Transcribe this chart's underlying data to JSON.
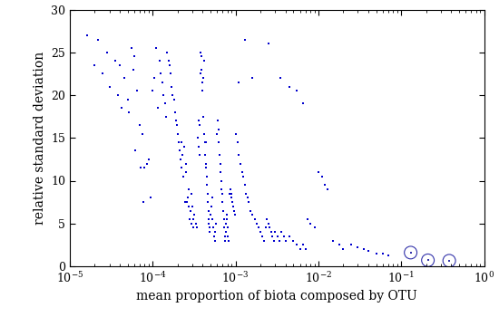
{
  "xlabel": "mean proportion of biota composed by OTU",
  "ylabel": "relative standard deviation",
  "xlim_log": [
    -5,
    0
  ],
  "ylim": [
    0,
    30
  ],
  "dot_color": "#0000CD",
  "circle_color": "#3333AA",
  "background_color": "#ffffff",
  "circled_points": [
    [
      0.13,
      1.6
    ],
    [
      0.21,
      0.7
    ],
    [
      0.38,
      0.65
    ]
  ],
  "scatter_points": [
    [
      1.6e-05,
      27.0
    ],
    [
      2.2e-05,
      26.5
    ],
    [
      2.8e-05,
      25.0
    ],
    [
      2e-05,
      23.5
    ],
    [
      3.5e-05,
      24.0
    ],
    [
      4e-05,
      23.5
    ],
    [
      2.5e-05,
      22.5
    ],
    [
      4.5e-05,
      22.0
    ],
    [
      3e-05,
      21.0
    ],
    [
      5.5e-05,
      25.5
    ],
    [
      3.8e-05,
      20.0
    ],
    [
      5e-05,
      19.5
    ],
    [
      4.2e-05,
      18.5
    ],
    [
      6e-05,
      24.5
    ],
    [
      5.8e-05,
      23.0
    ],
    [
      6.5e-05,
      20.5
    ],
    [
      5.2e-05,
      18.0
    ],
    [
      7e-05,
      16.5
    ],
    [
      7.5e-05,
      15.5
    ],
    [
      6.2e-05,
      13.5
    ],
    [
      8e-05,
      11.5
    ],
    [
      8.5e-05,
      12.0
    ],
    [
      7.2e-05,
      11.5
    ],
    [
      9e-05,
      12.5
    ],
    [
      9.5e-05,
      8.0
    ],
    [
      7.8e-05,
      7.5
    ],
    [
      0.0001,
      20.5
    ],
    [
      0.000105,
      22.0
    ],
    [
      0.00011,
      25.5
    ],
    [
      0.000115,
      18.5
    ],
    [
      0.00012,
      24.0
    ],
    [
      0.000125,
      22.5
    ],
    [
      0.00013,
      21.5
    ],
    [
      0.000135,
      20.0
    ],
    [
      0.00014,
      19.0
    ],
    [
      0.000145,
      17.5
    ],
    [
      0.00015,
      25.0
    ],
    [
      0.000155,
      24.0
    ],
    [
      0.00016,
      23.5
    ],
    [
      0.000165,
      22.5
    ],
    [
      0.00017,
      21.0
    ],
    [
      0.000175,
      20.0
    ],
    [
      0.00018,
      19.5
    ],
    [
      0.000185,
      18.0
    ],
    [
      0.00019,
      17.0
    ],
    [
      0.000195,
      16.5
    ],
    [
      0.0002,
      15.5
    ],
    [
      0.000205,
      14.5
    ],
    [
      0.00021,
      13.5
    ],
    [
      0.000215,
      12.5
    ],
    [
      0.00022,
      14.5
    ],
    [
      0.000225,
      11.5
    ],
    [
      0.00023,
      13.0
    ],
    [
      0.000235,
      10.5
    ],
    [
      0.00024,
      14.0
    ],
    [
      0.000245,
      7.5
    ],
    [
      0.00025,
      12.0
    ],
    [
      0.000255,
      11.0
    ],
    [
      0.00026,
      7.5
    ],
    [
      0.000265,
      8.0
    ],
    [
      0.00027,
      9.0
    ],
    [
      0.000275,
      7.0
    ],
    [
      0.00028,
      5.5
    ],
    [
      0.000285,
      6.5
    ],
    [
      0.00029,
      8.5
    ],
    [
      0.000295,
      5.0
    ],
    [
      0.0003,
      7.0
    ],
    [
      0.000305,
      4.5
    ],
    [
      0.00031,
      5.5
    ],
    [
      0.00032,
      6.0
    ],
    [
      0.00033,
      5.0
    ],
    [
      0.00034,
      4.5
    ],
    [
      0.00035,
      15.0
    ],
    [
      0.000355,
      14.0
    ],
    [
      0.00036,
      17.0
    ],
    [
      0.000365,
      13.0
    ],
    [
      0.00037,
      16.5
    ],
    [
      0.000375,
      22.5
    ],
    [
      0.00038,
      25.0
    ],
    [
      0.000385,
      24.5
    ],
    [
      0.00039,
      23.0
    ],
    [
      0.000395,
      21.5
    ],
    [
      0.0004,
      20.5
    ],
    [
      0.000405,
      17.5
    ],
    [
      0.00041,
      22.0
    ],
    [
      0.000415,
      24.0
    ],
    [
      0.00042,
      15.5
    ],
    [
      0.000425,
      14.5
    ],
    [
      0.00043,
      13.0
    ],
    [
      0.000435,
      12.0
    ],
    [
      0.00044,
      11.5
    ],
    [
      0.000445,
      14.5
    ],
    [
      0.00045,
      10.5
    ],
    [
      0.000455,
      9.5
    ],
    [
      0.00046,
      8.5
    ],
    [
      0.000465,
      7.5
    ],
    [
      0.00047,
      6.5
    ],
    [
      0.000475,
      5.5
    ],
    [
      0.00048,
      5.0
    ],
    [
      0.000485,
      4.5
    ],
    [
      0.00049,
      4.0
    ],
    [
      0.0005,
      6.0
    ],
    [
      0.00051,
      7.0
    ],
    [
      0.00052,
      8.0
    ],
    [
      0.00053,
      5.5
    ],
    [
      0.00054,
      4.5
    ],
    [
      0.00055,
      3.5
    ],
    [
      0.00056,
      3.0
    ],
    [
      0.00057,
      4.0
    ],
    [
      0.00058,
      5.0
    ],
    [
      0.0006,
      15.5
    ],
    [
      0.00061,
      17.0
    ],
    [
      0.00062,
      16.0
    ],
    [
      0.00063,
      14.5
    ],
    [
      0.00064,
      13.0
    ],
    [
      0.00065,
      12.0
    ],
    [
      0.00066,
      11.0
    ],
    [
      0.00067,
      10.0
    ],
    [
      0.00068,
      9.0
    ],
    [
      0.00069,
      8.5
    ],
    [
      0.0007,
      7.5
    ],
    [
      0.00071,
      6.5
    ],
    [
      0.00072,
      5.5
    ],
    [
      0.00073,
      4.5
    ],
    [
      0.00074,
      3.5
    ],
    [
      0.00075,
      3.0
    ],
    [
      0.00076,
      4.0
    ],
    [
      0.00077,
      5.0
    ],
    [
      0.00078,
      6.0
    ],
    [
      0.00079,
      5.5
    ],
    [
      0.0008,
      4.5
    ],
    [
      0.00081,
      3.5
    ],
    [
      0.00082,
      3.0
    ],
    [
      0.00085,
      8.5
    ],
    [
      0.00087,
      9.0
    ],
    [
      0.00089,
      8.5
    ],
    [
      0.0009,
      8.0
    ],
    [
      0.00092,
      7.5
    ],
    [
      0.00094,
      7.0
    ],
    [
      0.00096,
      6.5
    ],
    [
      0.00098,
      6.0
    ],
    [
      0.001,
      15.5
    ],
    [
      0.00105,
      14.5
    ],
    [
      0.0011,
      13.0
    ],
    [
      0.00115,
      12.0
    ],
    [
      0.0012,
      11.0
    ],
    [
      0.00125,
      10.5
    ],
    [
      0.0013,
      9.5
    ],
    [
      0.00135,
      8.5
    ],
    [
      0.0014,
      8.0
    ],
    [
      0.00145,
      7.5
    ],
    [
      0.0015,
      6.5
    ],
    [
      0.0016,
      6.0
    ],
    [
      0.0017,
      5.5
    ],
    [
      0.0018,
      5.0
    ],
    [
      0.0019,
      4.5
    ],
    [
      0.002,
      4.0
    ],
    [
      0.0021,
      3.5
    ],
    [
      0.0022,
      3.0
    ],
    [
      0.0023,
      4.5
    ],
    [
      0.0024,
      5.5
    ],
    [
      0.0025,
      5.0
    ],
    [
      0.0026,
      4.5
    ],
    [
      0.0027,
      4.0
    ],
    [
      0.0028,
      3.5
    ],
    [
      0.0029,
      3.0
    ],
    [
      0.003,
      4.0
    ],
    [
      0.0032,
      3.5
    ],
    [
      0.0034,
      3.0
    ],
    [
      0.0036,
      4.0
    ],
    [
      0.0038,
      3.5
    ],
    [
      0.004,
      3.0
    ],
    [
      0.0045,
      3.5
    ],
    [
      0.005,
      3.0
    ],
    [
      0.0055,
      2.5
    ],
    [
      0.006,
      2.0
    ],
    [
      0.0065,
      2.5
    ],
    [
      0.007,
      2.0
    ],
    [
      0.0075,
      5.5
    ],
    [
      0.008,
      5.0
    ],
    [
      0.009,
      4.5
    ],
    [
      0.01,
      11.0
    ],
    [
      0.011,
      10.5
    ],
    [
      0.012,
      9.5
    ],
    [
      0.013,
      9.0
    ],
    [
      0.015,
      3.0
    ],
    [
      0.018,
      2.5
    ],
    [
      0.02,
      2.0
    ],
    [
      0.025,
      2.5
    ],
    [
      0.03,
      2.2
    ],
    [
      0.035,
      2.0
    ],
    [
      0.04,
      1.8
    ],
    [
      0.05,
      1.5
    ],
    [
      0.06,
      1.5
    ],
    [
      0.07,
      1.3
    ],
    [
      0.0025,
      26.0
    ],
    [
      0.0035,
      22.0
    ],
    [
      0.0045,
      21.0
    ],
    [
      0.0055,
      20.5
    ],
    [
      0.0065,
      19.0
    ],
    [
      0.0013,
      26.5
    ],
    [
      0.0016,
      22.0
    ],
    [
      0.0011,
      21.5
    ]
  ]
}
